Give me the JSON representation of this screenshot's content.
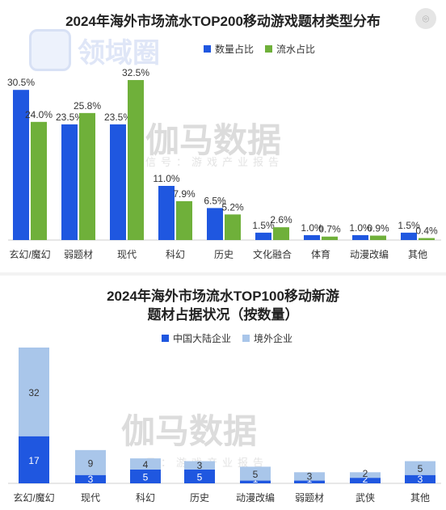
{
  "chart1": {
    "title": "2024年海外市场流水TOP200移动游戏题材类型分布",
    "watermark": "伽马数据",
    "watermark_sub": "信号：游戏产业报告",
    "logo_text": "领域圈",
    "icons": [
      "camera-icon",
      "logo-icon"
    ]
  },
  "chart2": {
    "title_line1": "2024年海外市场流水TOP100移动新游",
    "title_line2": "题材占据状况（按数量）",
    "watermark": "伽马数据",
    "watermark_sub": "号：游戏产业报告"
  },
  "chart_data": [
    {
      "type": "bar",
      "title": "2024年海外市场流水TOP200移动游戏题材类型分布",
      "categories": [
        "玄幻/魔幻",
        "弱题材",
        "现代",
        "科幻",
        "历史",
        "文化融合",
        "体育",
        "动漫改编",
        "其他"
      ],
      "series": [
        {
          "name": "数量占比",
          "values": [
            30.5,
            23.5,
            23.5,
            11.0,
            6.5,
            1.5,
            1.0,
            1.0,
            1.5
          ],
          "labels": [
            "30.5%",
            "23.5%",
            "23.5%",
            "11.0%",
            "6.5%",
            "1.5%",
            "1.0%",
            "1.0%",
            "1.5%"
          ],
          "color": "#1f57e0"
        },
        {
          "name": "流水占比",
          "values": [
            24.0,
            25.8,
            32.5,
            7.9,
            5.2,
            2.6,
            0.7,
            0.9,
            0.4
          ],
          "labels": [
            "24.0%",
            "25.8%",
            "32.5%",
            "7.9%",
            "5.2%",
            "2.6%",
            "0.7%",
            "0.9%",
            "0.4%"
          ],
          "color": "#6fb03a"
        }
      ],
      "ylim": [
        0,
        33
      ],
      "legend": "top-center",
      "grid": false
    },
    {
      "type": "bar",
      "stacked": true,
      "title": "2024年海外市场流水TOP100移动新游题材占据状况（按数量）",
      "categories": [
        "玄幻/魔幻",
        "现代",
        "科幻",
        "历史",
        "动漫改编",
        "弱题材",
        "武侠",
        "其他"
      ],
      "series": [
        {
          "name": "中国大陆企业",
          "values": [
            17,
            3,
            5,
            5,
            1,
            1,
            2,
            3
          ],
          "color": "#1f57e0"
        },
        {
          "name": "境外企业",
          "values": [
            32,
            9,
            4,
            3,
            5,
            3,
            2,
            5
          ],
          "color": "#a9c6ea"
        }
      ],
      "ylim": [
        0,
        49
      ],
      "legend": "top-center",
      "grid": false
    }
  ]
}
